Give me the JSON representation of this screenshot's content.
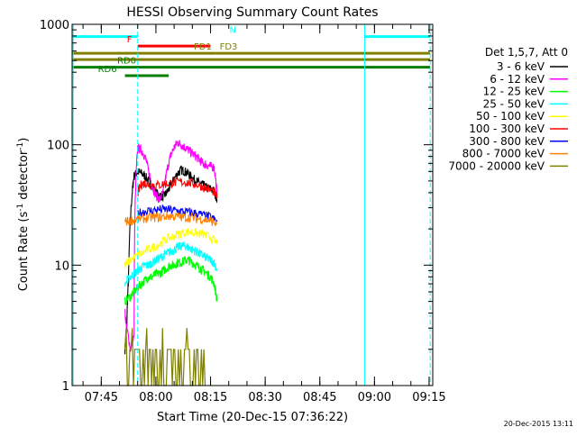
{
  "chart_data": {
    "type": "line",
    "title": "HESSI Observing Summary Count Rates",
    "xlabel": "Start Time (20-Dec-15 07:36:22)",
    "ylabel": "Count Rate (s",
    "ylabel_sup1": "-1",
    "ylabel_mid": " detector",
    "ylabel_sup2": "-1",
    "ylabel_end": ")",
    "yscale": "log",
    "ylim": [
      1,
      1000
    ],
    "xlim_minutes": [
      37.0,
      136.0
    ],
    "x_ticks": [
      {
        "m": 45,
        "label": "07:45"
      },
      {
        "m": 60,
        "label": "08:00"
      },
      {
        "m": 75,
        "label": "08:15"
      },
      {
        "m": 90,
        "label": "08:30"
      },
      {
        "m": 105,
        "label": "08:45"
      },
      {
        "m": 120,
        "label": "09:00"
      },
      {
        "m": 135,
        "label": "09:15"
      }
    ],
    "y_ticks": [
      {
        "v": 1,
        "label": "1"
      },
      {
        "v": 10,
        "label": "10"
      },
      {
        "v": 100,
        "label": "100"
      },
      {
        "v": 1000,
        "label": "1000"
      }
    ],
    "legend_header": "Det 1,5,7, Att 0",
    "legend_placement": "right",
    "timestamp": "20-Dec-2015 13:11",
    "series": [
      {
        "name": "3 - 6 keV",
        "color": "#000000",
        "x": [
          51.5,
          52.0,
          52.5,
          53.5,
          54.0,
          55.0,
          56.0,
          57.0,
          58.0,
          59.0,
          60.0,
          61.0,
          62.0,
          63.0,
          64.0,
          65.0,
          66.0,
          67.0,
          68.0,
          69.0,
          70.0,
          71.0,
          72.0,
          73.0,
          74.0,
          75.0,
          76.0,
          76.8
        ],
        "y": [
          2.0,
          3.0,
          8.0,
          40.0,
          55.0,
          60.0,
          58.0,
          55.0,
          50.0,
          45.0,
          40.0,
          38.0,
          37.0,
          40.0,
          45.0,
          52.0,
          58.0,
          62.0,
          60.0,
          57.0,
          53.0,
          50.0,
          48.0,
          46.0,
          44.0,
          43.0,
          41.0,
          35.0
        ]
      },
      {
        "name": "6 - 12 keV",
        "color": "#ff00ff",
        "x": [
          51.5,
          52.0,
          53.0,
          54.0,
          55.0,
          56.0,
          57.0,
          58.0,
          59.0,
          60.0,
          61.0,
          62.0,
          63.0,
          64.0,
          65.0,
          66.0,
          67.0,
          68.0,
          69.0,
          70.0,
          71.0,
          72.0,
          73.0,
          74.0,
          75.0,
          76.0,
          76.8
        ],
        "y": [
          4.0,
          3.0,
          2.0,
          2.5,
          95.0,
          90.0,
          80.0,
          60.0,
          45.0,
          38.0,
          35.0,
          40.0,
          60.0,
          80.0,
          95.0,
          105.0,
          100.0,
          95.0,
          90.0,
          85.0,
          80.0,
          75.0,
          70.0,
          68.0,
          66.0,
          65.0,
          38.0
        ]
      },
      {
        "name": "12 - 25 keV",
        "color": "#00ff00",
        "x": [
          51.5,
          53.0,
          54.0,
          55.0,
          56.0,
          57.0,
          58.0,
          59.0,
          60.0,
          61.0,
          62.0,
          63.0,
          64.0,
          65.0,
          66.0,
          67.0,
          68.0,
          69.0,
          70.0,
          71.0,
          72.0,
          73.0,
          74.0,
          75.0,
          76.0,
          76.8
        ],
        "y": [
          5.0,
          5.5,
          6.0,
          6.5,
          7.0,
          7.5,
          8.0,
          8.0,
          8.5,
          8.5,
          9.0,
          9.5,
          10.0,
          10.0,
          10.5,
          10.5,
          11.0,
          11.0,
          10.5,
          10.0,
          9.5,
          9.0,
          8.5,
          8.0,
          7.0,
          5.0
        ]
      },
      {
        "name": "25 - 50 keV",
        "color": "#00ffff",
        "x": [
          51.5,
          53.0,
          54.0,
          55.0,
          56.0,
          57.0,
          58.0,
          59.0,
          60.0,
          61.0,
          62.0,
          63.0,
          64.0,
          65.0,
          66.0,
          67.0,
          68.0,
          69.0,
          70.0,
          71.0,
          72.0,
          73.0,
          74.0,
          75.0,
          76.0,
          76.8
        ],
        "y": [
          7.0,
          8.0,
          8.5,
          9.0,
          9.5,
          10.0,
          10.0,
          10.5,
          11.0,
          11.5,
          12.0,
          12.5,
          13.0,
          13.5,
          14.0,
          14.5,
          14.5,
          14.0,
          13.5,
          13.0,
          12.5,
          12.0,
          11.5,
          11.0,
          10.5,
          9.0
        ]
      },
      {
        "name": "50 - 100 keV",
        "color": "#ffff00",
        "x": [
          51.5,
          53.0,
          55.0,
          57.0,
          59.0,
          61.0,
          63.0,
          65.0,
          67.0,
          69.0,
          71.0,
          73.0,
          75.0,
          76.8
        ],
        "y": [
          10.0,
          11.0,
          12.0,
          13.0,
          14.0,
          15.0,
          16.5,
          17.5,
          18.5,
          19.0,
          18.5,
          18.0,
          17.0,
          15.0
        ]
      },
      {
        "name": "100 - 300 keV",
        "color": "#ff0000",
        "x": [
          55.0,
          56.0,
          57.0,
          58.0,
          60.0,
          62.0,
          64.0,
          66.0,
          68.0,
          70.0,
          72.0,
          74.0,
          76.0,
          76.8
        ],
        "y": [
          40.0,
          47.0,
          48.0,
          47.0,
          46.0,
          47.0,
          48.0,
          49.0,
          49.0,
          48.0,
          46.0,
          43.0,
          41.0,
          36.0
        ]
      },
      {
        "name": "300 - 800 keV",
        "color": "#0000ff",
        "x": [
          55.0,
          57.0,
          59.0,
          61.0,
          63.0,
          65.0,
          67.0,
          69.0,
          71.0,
          73.0,
          75.0,
          76.8
        ],
        "y": [
          27.0,
          28.0,
          28.5,
          29.0,
          29.0,
          28.5,
          28.0,
          27.5,
          27.0,
          26.0,
          25.0,
          23.0
        ]
      },
      {
        "name": "800 - 7000 keV",
        "color": "#ff8000",
        "x": [
          51.5,
          53.0,
          55.0,
          57.0,
          59.0,
          61.0,
          63.0,
          65.0,
          67.0,
          69.0,
          71.0,
          73.0,
          75.0,
          76.8
        ],
        "y": [
          23.0,
          23.5,
          24.0,
          24.5,
          25.0,
          25.0,
          25.5,
          25.5,
          25.0,
          25.0,
          24.5,
          24.0,
          23.5,
          22.0
        ]
      },
      {
        "name": "7000 - 20000 keV",
        "color": "#808000",
        "x": [
          51.5,
          52.5,
          53.5,
          54.5,
          55.5,
          56.5,
          57.5,
          58.5,
          59.5,
          60.5,
          61.5,
          62.5,
          63.5,
          64.5,
          65.5,
          66.5,
          67.5,
          68.5,
          69.5,
          70.5,
          71.5,
          72.5,
          73.5
        ],
        "y": [
          1.0,
          2.0,
          1.0,
          2.0,
          1.0,
          2.0,
          1.0,
          3.0,
          1.0,
          2.0,
          1.0,
          2.0,
          1.0,
          2.0,
          1.0,
          3.0,
          1.0,
          2.0,
          1.0,
          2.0,
          1.0,
          2.0,
          1.0
        ]
      }
    ],
    "vertical_lines": [
      {
        "m": 37.3,
        "style": "solid",
        "color": "#00ffff"
      },
      {
        "m": 55.0,
        "style": "dashed",
        "color": "#00ffff"
      },
      {
        "m": 117.3,
        "style": "solid",
        "color": "#00ffff"
      },
      {
        "m": 135.3,
        "style": "dashed",
        "color": "#00ffff"
      }
    ],
    "flag_bars": [
      {
        "label": "",
        "color": "#00ffff",
        "x0": 37.3,
        "x1": 55.0,
        "y": 790
      },
      {
        "label": "N",
        "color": "#00ffff",
        "x0": 117.3,
        "x1": 135.3,
        "y": 790
      },
      {
        "label": "F",
        "color": "#ff0000",
        "x0": 55.0,
        "x1": 75.0,
        "y": 660
      },
      {
        "label": "FD1",
        "color": "#808000",
        "x0": 37.0,
        "x1": 76.5,
        "y": 575
      },
      {
        "label": "FD3",
        "color": "#808000",
        "x0": 76.5,
        "x1": 135.3,
        "y": 575
      },
      {
        "label": "",
        "color": "#808000",
        "x0": 37.0,
        "x1": 135.3,
        "y": 510
      },
      {
        "label": "RD0",
        "color": "#007f00",
        "x0": 37.0,
        "x1": 135.3,
        "y": 440
      },
      {
        "label": "RD6",
        "color": "#007f00",
        "x0": 51.5,
        "x1": 63.5,
        "y": 375
      }
    ]
  }
}
